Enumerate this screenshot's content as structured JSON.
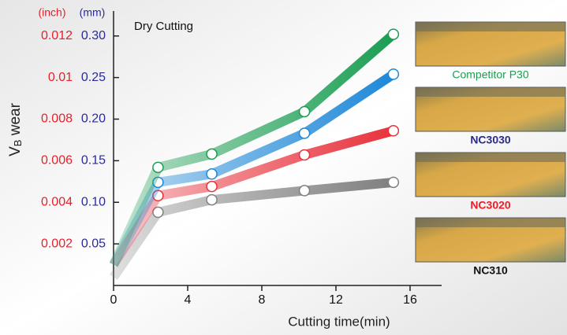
{
  "chart_data": {
    "type": "line",
    "title": "Dry Cutting",
    "xlabel": "Cutting time(min)",
    "ylabel": [
      "V",
      "B",
      " wear"
    ],
    "y_unit": "(mm)",
    "y2_unit": "(inch)",
    "x": [
      0,
      2.4,
      5.3,
      10.3,
      15.1
    ],
    "xlim": [
      0,
      16
    ],
    "xticks": [
      0,
      4,
      8,
      12,
      16
    ],
    "ylim": [
      0,
      0.33
    ],
    "yticks": [
      {
        "value": 0.05,
        "label": "0.05"
      },
      {
        "value": 0.1,
        "label": "0.10"
      },
      {
        "value": 0.15,
        "label": "0.15"
      },
      {
        "value": 0.2,
        "label": "0.20"
      },
      {
        "value": 0.25,
        "label": "0.25"
      },
      {
        "value": 0.3,
        "label": "0.30"
      }
    ],
    "y2lim": [
      0,
      0.0132
    ],
    "y2ticks": [
      0.002,
      0.004,
      0.006,
      0.008,
      0.01,
      0.012
    ],
    "series": [
      {
        "name": "Competitor P30",
        "color": "#1a9e52",
        "values": [
          0.025,
          0.142,
          0.158,
          0.209,
          0.302
        ]
      },
      {
        "name": "NC3030",
        "color": "#1e88d8",
        "values": [
          0.025,
          0.124,
          0.134,
          0.183,
          0.254
        ]
      },
      {
        "name": "NC3020",
        "color": "#e8323c",
        "values": [
          0.025,
          0.108,
          0.119,
          0.157,
          0.186
        ]
      },
      {
        "name": "NC310",
        "color": "#808080",
        "values": [
          0.01,
          0.088,
          0.103,
          0.114,
          0.124
        ]
      }
    ],
    "label_colors": [
      "#1a9e52",
      "#2a2a8a",
      "#e8202a",
      "#111111"
    ]
  }
}
